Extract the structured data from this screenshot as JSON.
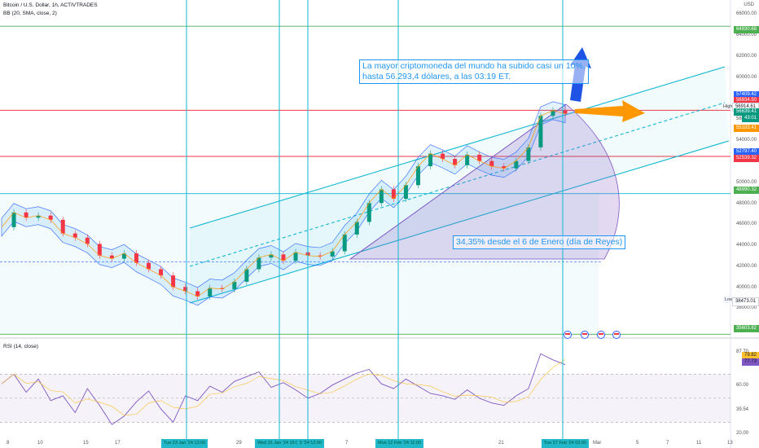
{
  "legend": {
    "symbol_line": "Bitcoin / U.S. Dollar, 1h, ACTIVTRADES",
    "bb_line": "BB (20, SMA, close, 2)",
    "rsi_line": "RSI (14, close)"
  },
  "annotations": {
    "top_line1": "La mayor criptomoneda del mundo ha subido casi un 10%,",
    "top_line2": " hasta 56.293,4 dólares, a las 03:19 ET.",
    "bottom": "34,35% desde el 6 de Enero (día de Reyes)"
  },
  "axis": {
    "currency": "USD",
    "high_tag": "High",
    "low_tag": "Low"
  },
  "colors": {
    "accent": "#2196f3",
    "channel": "#12b8d2",
    "support_red": "#f23645",
    "level_green": "#4caf50",
    "candle_up": "#089981",
    "candle_down": "#f23645"
  },
  "chart_data": [
    {
      "type": "line",
      "title": "Bitcoin / U.S. Dollar, 1h, ACTIVTRADES",
      "ylim": [
        35500,
        66500
      ],
      "y_ticks": [
        "66000.00",
        "64000.00",
        "62000.00",
        "60000.00",
        "58000.00",
        "56000.00",
        "54000.00",
        "52000.00",
        "50000.00",
        "48000.00",
        "46000.00",
        "44000.00",
        "42000.00",
        "40000.00",
        "38000.00",
        "36000.00"
      ],
      "x_ticks": [
        "8",
        "10",
        "15",
        "17",
        "29",
        "7",
        "21",
        "Mar",
        "5",
        "7",
        "11",
        "13"
      ],
      "date_badges": [
        "Tue 23 Jan '24  13:00",
        "Wed 31 Jan '24  16:00",
        "5 '24  12:00",
        "Mon 12 Feb '24  11:00",
        "Tue 27 Feb '24  02:00"
      ],
      "price_labels": [
        {
          "text": "64930.68",
          "color": "#4caf50"
        },
        {
          "text": "57409.42",
          "color": "#2962ff"
        },
        {
          "text": "56934.50",
          "color": "#f23645"
        },
        {
          "text": "56914.61",
          "color": "#ffffff"
        },
        {
          "text": "56639.41",
          "color": "#089981"
        },
        {
          "text": "43:01",
          "color": "#089981"
        },
        {
          "text": "55183.41",
          "color": "#ff9800"
        },
        {
          "text": "52797.40",
          "color": "#2962ff"
        },
        {
          "text": "52539.32",
          "color": "#f23645"
        },
        {
          "text": "48990.32",
          "color": "#4caf50"
        },
        {
          "text": "38473.01",
          "color": "#ffffff"
        },
        {
          "text": "35603.82",
          "color": "#4caf50"
        }
      ],
      "horizontal_levels": [
        {
          "value": 64930.68,
          "color": "#4caf50"
        },
        {
          "value": 56934.5,
          "color": "#f23645"
        },
        {
          "value": 52539.32,
          "color": "#f23645"
        },
        {
          "value": 48990.32,
          "color": "#12b8d2"
        },
        {
          "value": 35603.82,
          "color": "#4caf50"
        }
      ],
      "series": [
        {
          "name": "BTCUSD",
          "values": [
            45800,
            47200,
            46700,
            46900,
            46500,
            45200,
            44800,
            44200,
            43100,
            42800,
            43300,
            42400,
            41800,
            41200,
            40100,
            39700,
            39200,
            40000,
            39900,
            40600,
            41800,
            42900,
            43200,
            42600,
            43400,
            43100,
            43000,
            43500,
            45100,
            46300,
            48100,
            49400,
            48500,
            49800,
            51600,
            52800,
            52300,
            51700,
            52700,
            52100,
            51600,
            51400,
            52100,
            53400,
            56400,
            56900,
            56600
          ]
        }
      ]
    },
    {
      "type": "line",
      "title": "RSI (14, close)",
      "ylim": [
        20,
        90
      ],
      "y_ticks": [
        "87.70",
        "60.00",
        "39.54",
        "20.00"
      ],
      "value_labels": [
        {
          "text": "79.82",
          "color": "#fbc02d"
        },
        {
          "text": "77.73",
          "color": "#7e57c2"
        }
      ],
      "series": [
        {
          "name": "RSI",
          "values": [
            62,
            70,
            55,
            66,
            48,
            52,
            38,
            58,
            44,
            28,
            35,
            47,
            56,
            41,
            30,
            52,
            48,
            60,
            55,
            64,
            68,
            72,
            59,
            63,
            57,
            50,
            54,
            61,
            66,
            71,
            74,
            62,
            58,
            66,
            60,
            54,
            52,
            49,
            57,
            50,
            46,
            44,
            52,
            58,
            87,
            82,
            78
          ]
        }
      ]
    }
  ]
}
